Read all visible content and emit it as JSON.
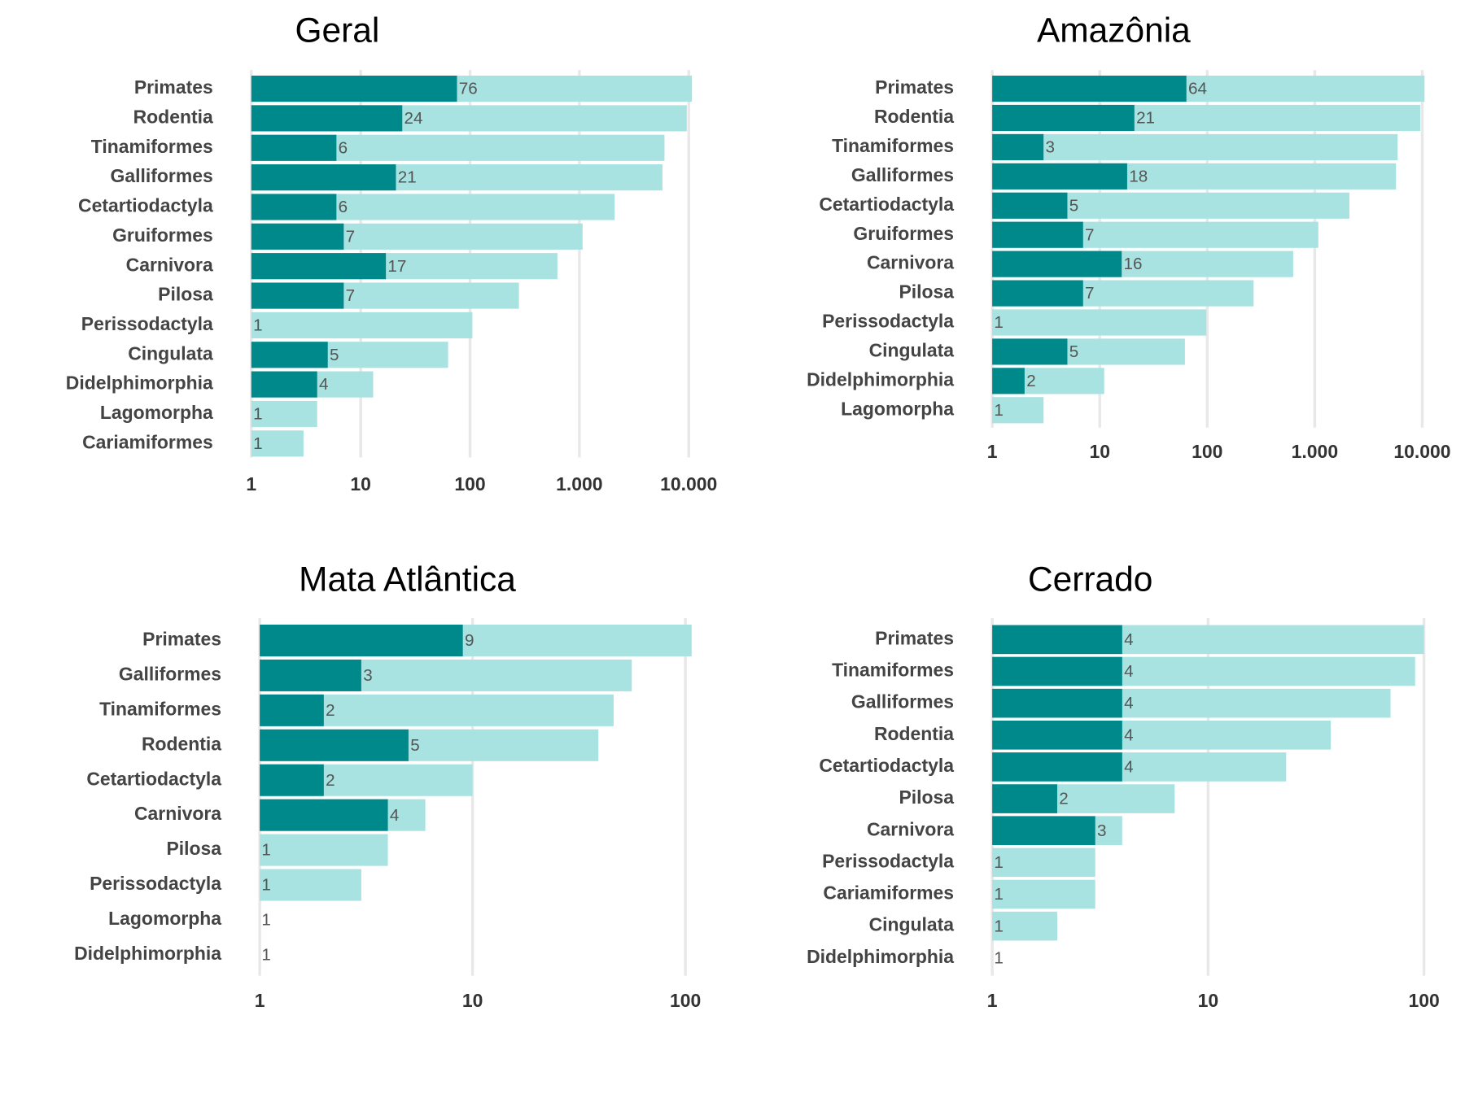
{
  "chart_data": [
    {
      "type": "bar",
      "orientation": "horizontal",
      "x_scale": "log",
      "title": "Geral",
      "categories": [
        "Primates",
        "Rodentia",
        "Tinamiformes",
        "Galliformes",
        "Cetartiodactyla",
        "Gruiformes",
        "Carnivora",
        "Pilosa",
        "Perissodactyla",
        "Cingulata",
        "Didelphimorphia",
        "Lagomorpha",
        "Cariamiformes"
      ],
      "series": [
        {
          "color": "#00898a",
          "values": [
            76,
            24,
            6,
            21,
            6,
            7,
            17,
            7,
            1,
            5,
            4,
            1,
            1
          ]
        },
        {
          "color": "#a8e2e1",
          "values": [
            10700,
            9600,
            6000,
            5750,
            2100,
            1070,
            630,
            280,
            105,
            63,
            13,
            4,
            3
          ]
        }
      ],
      "xlim": [
        1,
        11000
      ],
      "xticks": [
        1,
        10,
        100,
        {
          "value": 1000,
          "label": "1.000"
        },
        {
          "value": 10000,
          "label": "10.000"
        }
      ],
      "grid": true
    },
    {
      "type": "bar",
      "orientation": "horizontal",
      "x_scale": "log",
      "title": "Amazônia",
      "categories": [
        "Primates",
        "Rodentia",
        "Tinamiformes",
        "Galliformes",
        "Cetartiodactyla",
        "Gruiformes",
        "Carnivora",
        "Pilosa",
        "Perissodactyla",
        "Cingulata",
        "Didelphimorphia",
        "Lagomorpha"
      ],
      "series": [
        {
          "color": "#00898a",
          "values": [
            64,
            21,
            3,
            18,
            5,
            7,
            16,
            7,
            1,
            5,
            2,
            1
          ]
        },
        {
          "color": "#a8e2e1",
          "values": [
            10500,
            9600,
            5900,
            5700,
            2100,
            1080,
            630,
            270,
            98,
            62,
            11,
            3
          ]
        }
      ],
      "xlim": [
        1,
        11000
      ],
      "xticks": [
        1,
        10,
        100,
        {
          "value": 1000,
          "label": "1.000"
        },
        {
          "value": 10000,
          "label": "10.000"
        }
      ],
      "grid": true
    },
    {
      "type": "bar",
      "orientation": "horizontal",
      "x_scale": "log",
      "title": "Mata Atlântica",
      "categories": [
        "Primates",
        "Galliformes",
        "Tinamiformes",
        "Rodentia",
        "Cetartiodactyla",
        "Carnivora",
        "Pilosa",
        "Perissodactyla",
        "Lagomorpha",
        "Didelphimorphia"
      ],
      "series": [
        {
          "color": "#00898a",
          "values": [
            9,
            3,
            2,
            5,
            2,
            4,
            1,
            1,
            1,
            1
          ]
        },
        {
          "color": "#a8e2e1",
          "values": [
            107,
            56,
            46,
            39,
            10,
            6,
            4,
            3,
            1,
            1
          ]
        }
      ],
      "xlim": [
        1,
        110
      ],
      "xticks": [
        1,
        10,
        100
      ],
      "grid": true
    },
    {
      "type": "bar",
      "orientation": "horizontal",
      "x_scale": "log",
      "title": "Cerrado",
      "categories": [
        "Primates",
        "Tinamiformes",
        "Galliformes",
        "Rodentia",
        "Cetartiodactyla",
        "Pilosa",
        "Carnivora",
        "Perissodactyla",
        "Cariamiformes",
        "Cingulata",
        "Didelphimorphia"
      ],
      "series": [
        {
          "color": "#00898a",
          "values": [
            4,
            4,
            4,
            4,
            4,
            2,
            3,
            1,
            1,
            1,
            1
          ]
        },
        {
          "color": "#a8e2e1",
          "values": [
            100,
            91,
            70,
            37,
            23,
            7,
            4,
            3,
            3,
            2,
            1
          ]
        }
      ],
      "xlim": [
        1,
        105
      ],
      "xticks": [
        1,
        10,
        100
      ],
      "grid": true
    }
  ]
}
